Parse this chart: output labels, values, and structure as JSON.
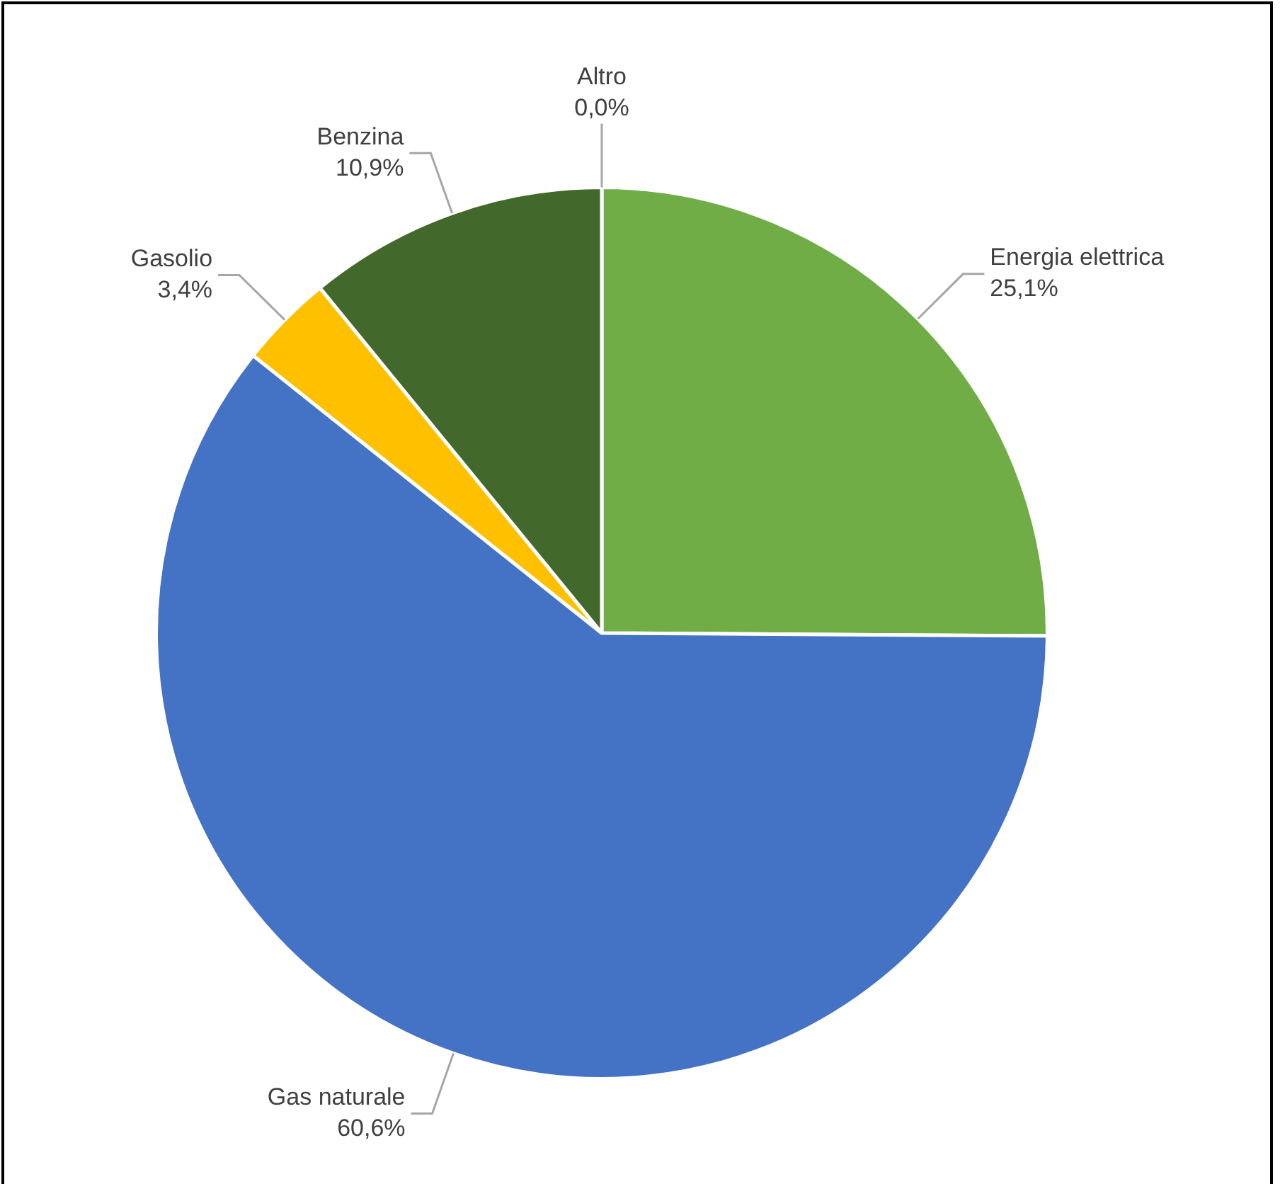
{
  "chart_data": {
    "type": "pie",
    "categories": [
      "Energia elettrica",
      "Gas naturale",
      "Gasolio",
      "Benzina",
      "Altro"
    ],
    "values": [
      25.1,
      60.6,
      3.4,
      10.9,
      0.0
    ],
    "colors": [
      "#70ad47",
      "#4472c4",
      "#ffc000",
      "#43682b",
      "#a5a5a5"
    ],
    "value_labels": [
      "25,1%",
      "60,6%",
      "3,4%",
      "10,9%",
      "0,0%"
    ],
    "legend": false
  }
}
